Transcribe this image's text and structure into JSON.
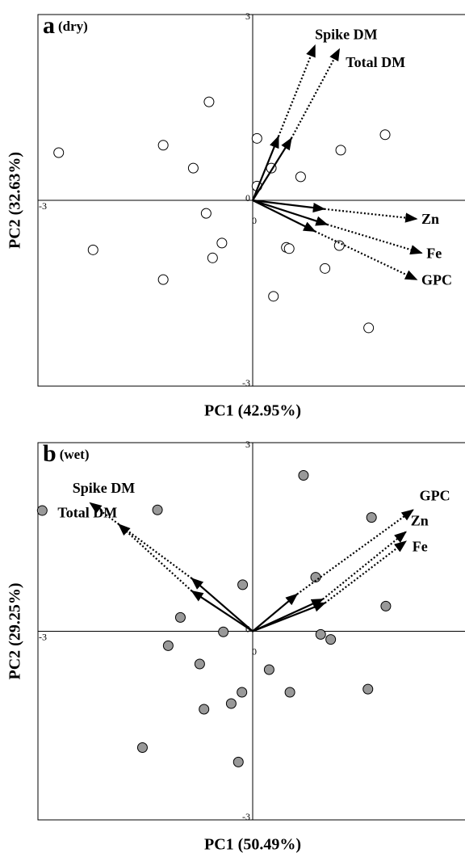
{
  "chart_data": [
    {
      "type": "scatter",
      "panel_label": "a",
      "condition": "(dry)",
      "xlabel": "PC1 (42.95%)",
      "ylabel": "PC2 (32.63%)",
      "xlim": [
        -3,
        3
      ],
      "ylim": [
        -3,
        3
      ],
      "xticks": [
        -3,
        0,
        3
      ],
      "yticks": [
        -3,
        0,
        3
      ],
      "point_fill": "#ffffff",
      "points": {
        "x": [
          -2.71,
          -1.25,
          -0.61,
          -0.83,
          -2.23,
          -0.65,
          -0.43,
          -0.56,
          -1.25,
          0.06,
          0.26,
          0.06,
          0.67,
          1.23,
          1.85,
          0.47,
          0.51,
          1.21,
          1.01,
          0.29,
          1.62
        ],
        "y": [
          0.77,
          0.89,
          1.59,
          0.52,
          -0.8,
          -0.21,
          -0.69,
          -0.93,
          -1.28,
          1.0,
          0.52,
          0.23,
          0.38,
          0.81,
          1.06,
          -0.76,
          -0.78,
          -0.73,
          -1.1,
          -1.55,
          -2.06
        ]
      },
      "vectors": [
        {
          "name": "Spike DM",
          "inner_x": 0.36,
          "inner_y": 1.03,
          "x": 0.87,
          "y": 2.5
        },
        {
          "name": "Total DM",
          "inner_x": 0.54,
          "inner_y": 1.0,
          "x": 1.21,
          "y": 2.44
        },
        {
          "name": "Zn",
          "inner_x": 1.0,
          "inner_y": -0.14,
          "x": 2.29,
          "y": -0.3
        },
        {
          "name": "Fe",
          "inner_x": 1.04,
          "inner_y": -0.39,
          "x": 2.36,
          "y": -0.85
        },
        {
          "name": "GPC",
          "inner_x": 0.87,
          "inner_y": -0.5,
          "x": 2.29,
          "y": -1.28
        }
      ]
    },
    {
      "type": "scatter",
      "panel_label": "b",
      "condition": "(wet)",
      "xlabel": "PC1 (50.49%)",
      "ylabel": "PC2 (29.25%)",
      "xlim": [
        -3,
        3
      ],
      "ylim": [
        -3,
        3
      ],
      "xticks": [
        -3,
        0,
        3
      ],
      "yticks": [
        -3,
        0,
        3
      ],
      "point_fill": "#999999",
      "points": {
        "x": [
          -2.94,
          -1.33,
          0.71,
          1.66,
          -0.14,
          0.88,
          1.86,
          -1.01,
          -1.18,
          -0.41,
          -0.74,
          0.95,
          1.09,
          0.23,
          0.52,
          -0.15,
          -0.3,
          -0.68,
          -1.54,
          -0.2,
          1.61
        ],
        "y": [
          1.92,
          1.93,
          2.48,
          1.81,
          0.74,
          0.86,
          0.4,
          0.22,
          -0.23,
          -0.01,
          -0.52,
          -0.05,
          -0.13,
          -0.61,
          -0.97,
          -0.97,
          -1.15,
          -1.24,
          -1.85,
          -2.08,
          -0.92
        ]
      },
      "vectors": [
        {
          "name": "Spike DM",
          "inner_x": -0.85,
          "inner_y": 0.84,
          "x": -2.27,
          "y": 2.04
        },
        {
          "name": "Total DM",
          "inner_x": -0.85,
          "inner_y": 0.64,
          "x": -1.87,
          "y": 1.7
        },
        {
          "name": "GPC",
          "inner_x": 0.62,
          "inner_y": 0.59,
          "x": 2.24,
          "y": 1.93
        },
        {
          "name": "Zn",
          "inner_x": 0.98,
          "inner_y": 0.51,
          "x": 2.14,
          "y": 1.58
        },
        {
          "name": "Fe",
          "inner_x": 1.01,
          "inner_y": 0.45,
          "x": 2.14,
          "y": 1.43
        }
      ]
    }
  ]
}
